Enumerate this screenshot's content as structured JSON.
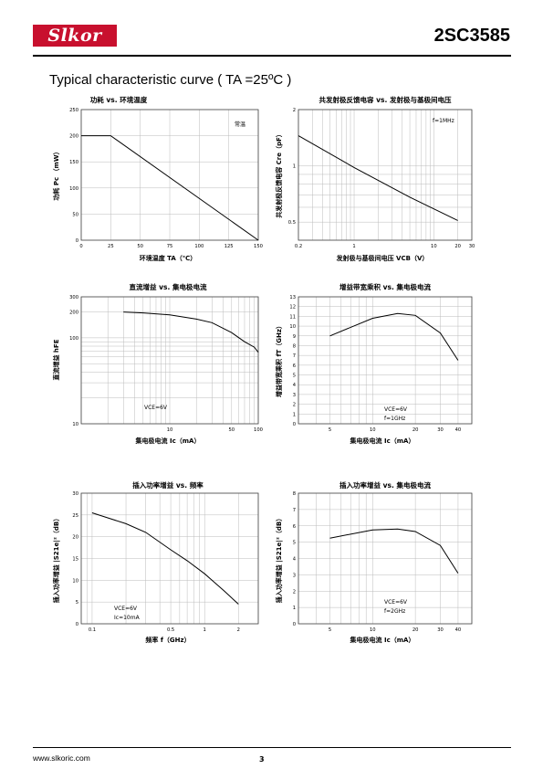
{
  "header": {
    "logo_text": "Slkor",
    "part_number": "2SC3585",
    "brand_color": "#c8102e"
  },
  "section_title": "Typical characteristic curve ( TA =25ºC )",
  "footer": {
    "website": "www.slkoric.com",
    "page_number": "3"
  },
  "chart_data": [
    {
      "type": "line",
      "title": "功耗 vs. 环境温度",
      "xlabel": "环境温度 TA（℃）",
      "ylabel": "功耗 Pc （mW）",
      "xscale": "linear",
      "yscale": "linear",
      "xlim": [
        0,
        150
      ],
      "ylim": [
        0,
        250
      ],
      "xticks": [
        0,
        25,
        50,
        75,
        100,
        125,
        150
      ],
      "yticks": [
        0,
        50,
        100,
        150,
        200,
        250
      ],
      "annotations": [
        "常温"
      ],
      "grid": true,
      "series": [
        {
          "x": [
            0,
            25,
            150
          ],
          "y": [
            200,
            200,
            0
          ]
        }
      ]
    },
    {
      "type": "line",
      "title": "共发射极反馈电容 vs. 发射极与基极间电压",
      "xlabel": "发射极与基极间电压 VCB（V）",
      "ylabel": "共发射极反馈电容 Cre（pF）",
      "xscale": "log",
      "yscale": "log",
      "xlim": [
        0.2,
        30
      ],
      "ylim": [
        0.4,
        2
      ],
      "xticks": [
        0.2,
        1,
        10,
        20,
        30
      ],
      "yticks": [
        0.5,
        1,
        2
      ],
      "annotations": [
        "f=1MHz"
      ],
      "grid": true,
      "series": [
        {
          "x": [
            0.2,
            1,
            5,
            20
          ],
          "y": [
            1.45,
            0.98,
            0.68,
            0.51
          ]
        }
      ]
    },
    {
      "type": "line",
      "title": "直流增益 vs. 集电极电流",
      "xlabel": "集电极电流 Ic（mA）",
      "ylabel": "直流增益 hFE",
      "xscale": "log",
      "yscale": "log",
      "xlim": [
        1,
        100
      ],
      "ylim": [
        10,
        300
      ],
      "xticks": [
        10,
        50,
        100
      ],
      "yticks": [
        10,
        100,
        200,
        300
      ],
      "annotations": [
        "VCE=6V"
      ],
      "grid": true,
      "series": [
        {
          "x": [
            3,
            5,
            10,
            20,
            30,
            50,
            70,
            90,
            100
          ],
          "y": [
            200,
            195,
            185,
            165,
            150,
            115,
            90,
            78,
            68
          ]
        }
      ]
    },
    {
      "type": "line",
      "title": "增益带宽乘积 vs. 集电极电流",
      "xlabel": "集电极电流 Ic（mA）",
      "ylabel": "增益带宽乘积 fT（GHz）",
      "xscale": "log",
      "yscale": "linear",
      "xlim": [
        3,
        50
      ],
      "ylim": [
        0,
        13
      ],
      "xticks": [
        5,
        10,
        20,
        30,
        40
      ],
      "yticks": [
        0,
        1,
        2,
        3,
        4,
        5,
        6,
        7,
        8,
        9,
        10,
        11,
        12,
        13
      ],
      "annotations": [
        "VCE=6V",
        "f=1GHz"
      ],
      "grid": true,
      "series": [
        {
          "x": [
            5,
            10,
            15,
            20,
            30,
            40
          ],
          "y": [
            9.0,
            10.8,
            11.3,
            11.1,
            9.3,
            6.5
          ]
        }
      ]
    },
    {
      "type": "line",
      "title": "插入功率增益 vs. 频率",
      "xlabel": "频率 f（GHz）",
      "ylabel": "插入功率增益 |S21e|²（dB）",
      "xscale": "log",
      "yscale": "linear",
      "xlim": [
        0.08,
        3
      ],
      "ylim": [
        0,
        30
      ],
      "xticks": [
        0.1,
        0.5,
        1,
        2
      ],
      "yticks": [
        0,
        5,
        10,
        15,
        20,
        25,
        30
      ],
      "annotations": [
        "VCE=6V",
        "Ic=10mA"
      ],
      "grid": true,
      "series": [
        {
          "x": [
            0.1,
            0.2,
            0.3,
            0.5,
            0.7,
            1.0,
            1.5,
            2.0
          ],
          "y": [
            25.5,
            23.0,
            21.0,
            17.0,
            14.5,
            11.5,
            7.5,
            4.5
          ]
        }
      ]
    },
    {
      "type": "line",
      "title": "插入功率增益 vs. 集电极电流",
      "xlabel": "集电极电流 Ic（mA）",
      "ylabel": "插入功率增益 |S21e|²（dB）",
      "xscale": "log",
      "yscale": "linear",
      "xlim": [
        3,
        50
      ],
      "ylim": [
        0,
        8
      ],
      "xticks": [
        5,
        10,
        20,
        30,
        40
      ],
      "yticks": [
        0,
        1,
        2,
        3,
        4,
        5,
        6,
        7,
        8
      ],
      "annotations": [
        "VCE=6V",
        "f=2GHz"
      ],
      "grid": true,
      "series": [
        {
          "x": [
            5,
            10,
            15,
            20,
            30,
            40
          ],
          "y": [
            5.25,
            5.75,
            5.8,
            5.65,
            4.8,
            3.1
          ]
        }
      ]
    }
  ]
}
